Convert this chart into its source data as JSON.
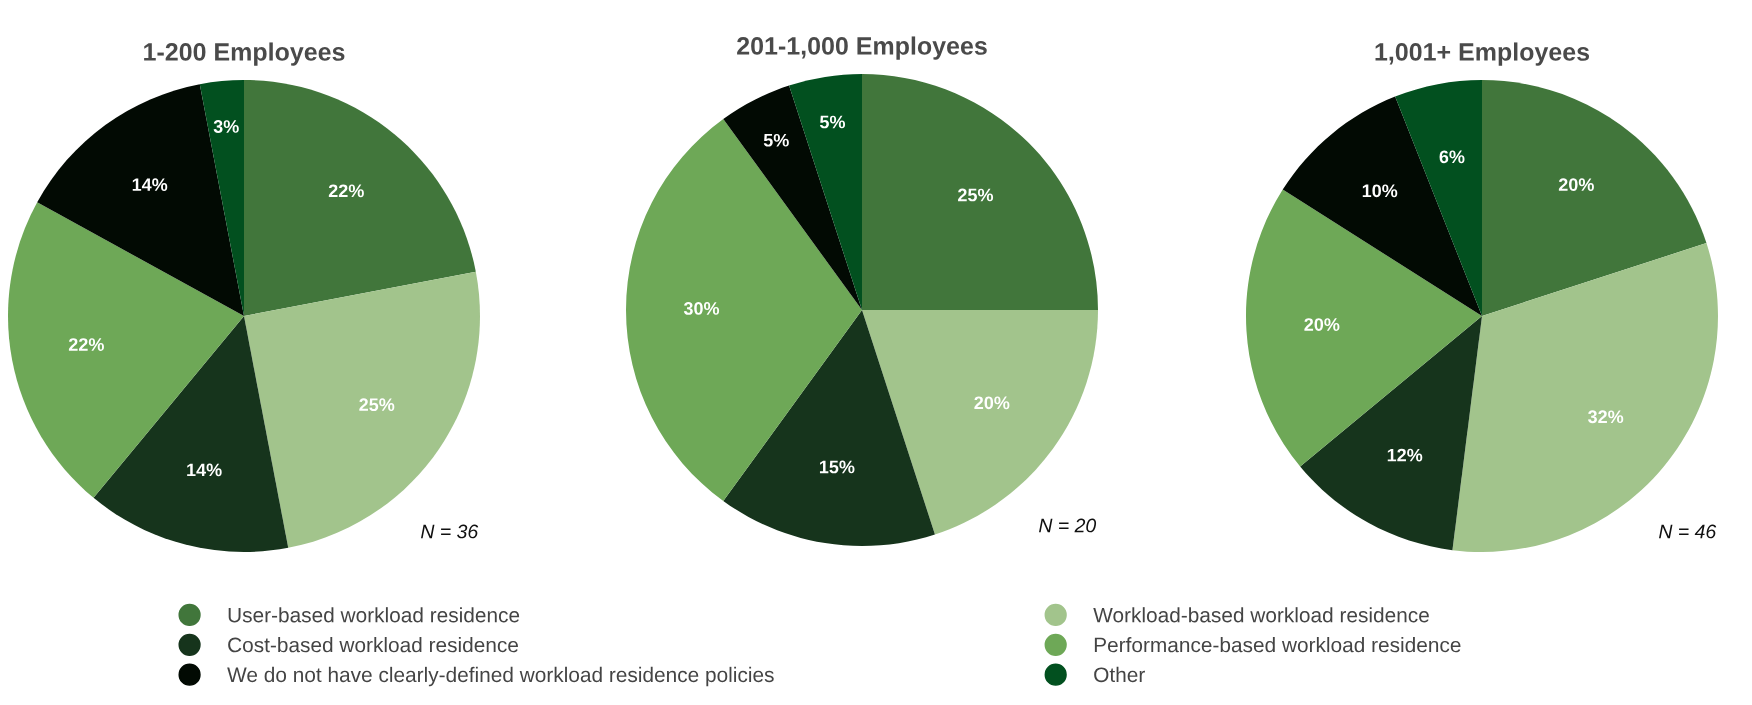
{
  "chart_data": [
    {
      "type": "pie",
      "title": "1-200 Employees",
      "categories": [
        "User-based workload residence",
        "Workload-based workload residence",
        "Cost-based workload residence",
        "Performance-based workload residence",
        "We do not have clearly-defined workload residence policies",
        "Other"
      ],
      "values": [
        22,
        25,
        14,
        22,
        14,
        3
      ],
      "colors": [
        "#41763b",
        "#a2c48c",
        "#16341c",
        "#6ea857",
        "#020a03",
        "#02501f"
      ],
      "value_labels": [
        "22%",
        "25%",
        "14%",
        "22%",
        "14%",
        "3%"
      ],
      "annotations": [
        "N = 36"
      ],
      "legend": "bottom"
    },
    {
      "type": "pie",
      "title": "201-1,000 Employees",
      "values": [
        25,
        20,
        15,
        30,
        5,
        5
      ],
      "colors": [
        "#41763b",
        "#a2c48c",
        "#16341c",
        "#6ea857",
        "#020a03",
        "#02501f"
      ],
      "value_labels": [
        "25%",
        "20%",
        "15%",
        "30%",
        "5%",
        "5%"
      ],
      "annotations": [
        "N = 20"
      ]
    },
    {
      "type": "pie",
      "title": "1,001+ Employees",
      "values": [
        20,
        32,
        12,
        20,
        10,
        6
      ],
      "colors": [
        "#41763b",
        "#a2c48c",
        "#16341c",
        "#6ea857",
        "#020a03",
        "#02501f"
      ],
      "value_labels": [
        "20%",
        "32%",
        "12%",
        "20%",
        "10%",
        "6%"
      ],
      "annotations": [
        "N = 46"
      ]
    }
  ]
}
